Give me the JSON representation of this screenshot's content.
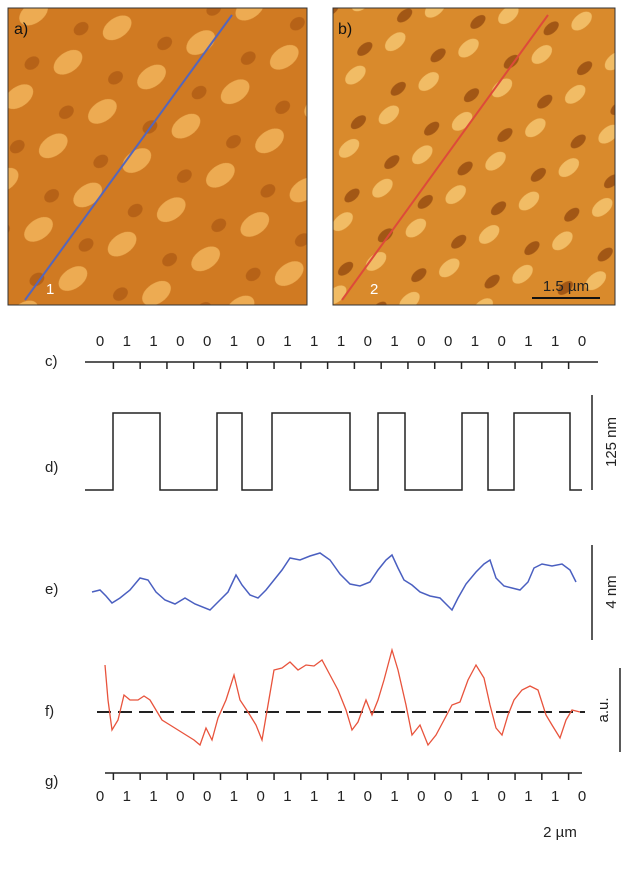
{
  "panels": {
    "a": {
      "label": "a)",
      "line_label": "1"
    },
    "b": {
      "label": "b)",
      "line_label": "2",
      "scale_bar": "1.5 µm"
    }
  },
  "rows": {
    "c": {
      "label": "c)",
      "bits": [
        0,
        1,
        1,
        0,
        0,
        1,
        0,
        1,
        1,
        1,
        0,
        1,
        0,
        0,
        1,
        0,
        1,
        1,
        0
      ]
    },
    "d": {
      "label": "d)",
      "scale_bar": "125 nm"
    },
    "e": {
      "label": "e)",
      "scale_bar": "4 nm"
    },
    "f": {
      "label": "f)",
      "scale_bar": "a.u."
    },
    "g": {
      "label": "g)",
      "bits": [
        0,
        1,
        1,
        0,
        0,
        1,
        0,
        1,
        1,
        1,
        0,
        1,
        0,
        0,
        1,
        0,
        1,
        1,
        0
      ],
      "scale_bar": "2 µm"
    }
  }
}
